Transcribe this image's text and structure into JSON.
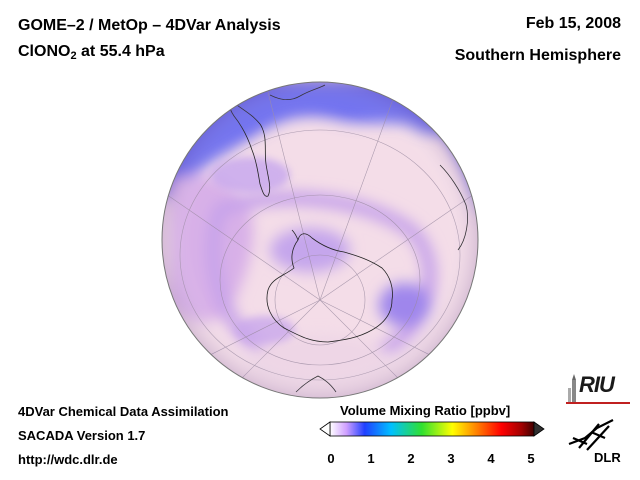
{
  "header": {
    "title_line1": "GOME–2 / MetOp – 4DVar Analysis",
    "title_species": "ClONO",
    "title_subscript": "2",
    "title_level": " at 55.4 hPa",
    "date": "Feb 15, 2008",
    "region": "Southern Hemisphere"
  },
  "footer": {
    "line1": "4DVar Chemical Data Assimilation",
    "line2": "SACADA Version 1.7",
    "line3": "http://wdc.dlr.de"
  },
  "colorbar": {
    "title": "Volume Mixing Ratio [ppbv]",
    "ticks": [
      "0",
      "1",
      "2",
      "3",
      "4",
      "5"
    ],
    "colors": [
      "#ffffff",
      "#c080ff",
      "#2040ff",
      "#00c0ff",
      "#30e030",
      "#ffff00",
      "#ff8000",
      "#ff0000",
      "#a00000",
      "#400000"
    ]
  },
  "logos": {
    "riu": "RIU",
    "dlr": "DLR"
  },
  "map": {
    "projection": "orthographic south-polar",
    "colors": {
      "background": "#f4dde8",
      "low": "#d8b8ea",
      "mid": "#a98de8",
      "high": "#6a6cf0"
    }
  }
}
